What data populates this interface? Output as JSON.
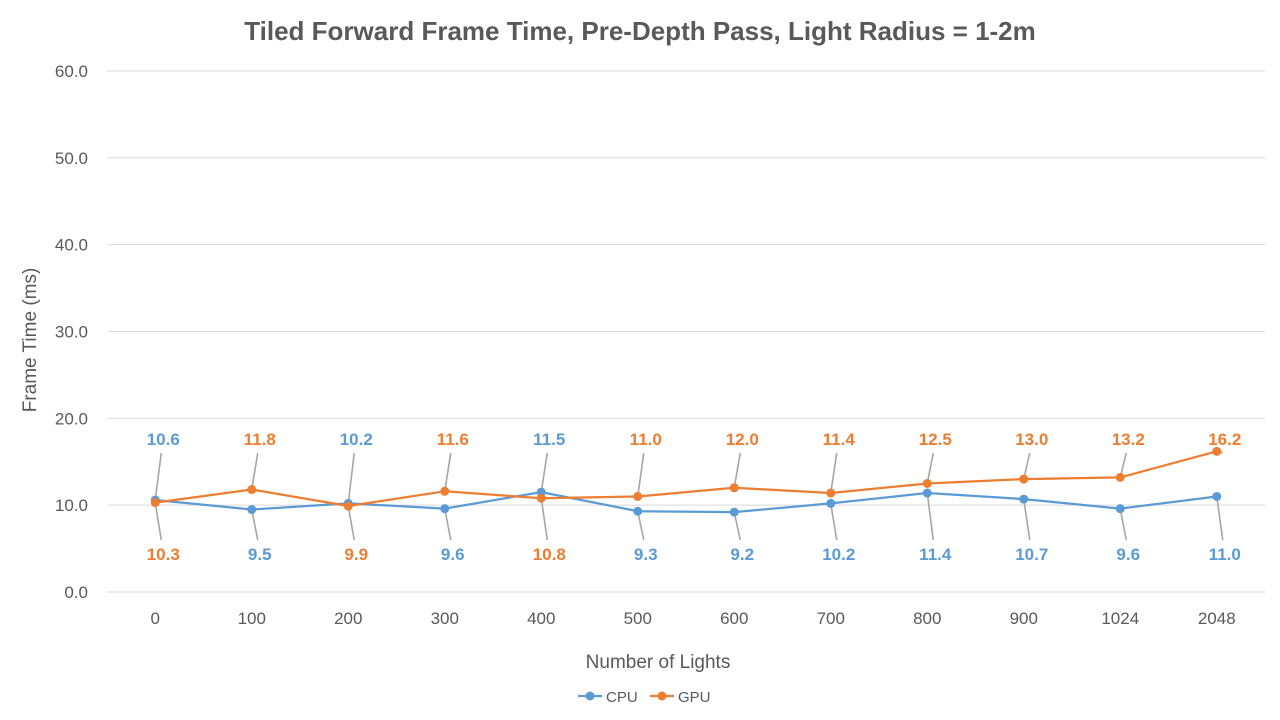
{
  "chart_data": {
    "type": "line",
    "title": "Tiled Forward Frame Time, Pre-Depth Pass, Light Radius = 1-2m",
    "xlabel": "Number of Lights",
    "ylabel": "Frame Time (ms)",
    "categories": [
      "0",
      "100",
      "200",
      "300",
      "400",
      "500",
      "600",
      "700",
      "800",
      "900",
      "1024",
      "2048"
    ],
    "ylim": [
      0,
      60
    ],
    "yticks": [
      "0.0",
      "10.0",
      "20.0",
      "30.0",
      "40.0",
      "50.0",
      "60.0"
    ],
    "grid": true,
    "legend": "bottom",
    "series": [
      {
        "name": "CPU",
        "color": "#5b9bd5",
        "values": [
          10.6,
          9.5,
          10.2,
          9.6,
          11.5,
          9.3,
          9.2,
          10.2,
          11.4,
          10.7,
          9.6,
          11.0
        ],
        "labels": [
          "10.6",
          "9.5",
          "10.2",
          "9.6",
          "11.5",
          "9.3",
          "9.2",
          "10.2",
          "11.4",
          "10.7",
          "9.6",
          "11.0"
        ]
      },
      {
        "name": "GPU",
        "color": "#ed7d31",
        "values": [
          10.3,
          11.8,
          9.9,
          11.6,
          10.8,
          11.0,
          12.0,
          11.4,
          12.5,
          13.0,
          13.2,
          16.2
        ],
        "labels": [
          "10.3",
          "11.8",
          "9.9",
          "11.6",
          "10.8",
          "11.0",
          "12.0",
          "11.4",
          "12.5",
          "13.0",
          "13.2",
          "16.2"
        ]
      }
    ]
  }
}
